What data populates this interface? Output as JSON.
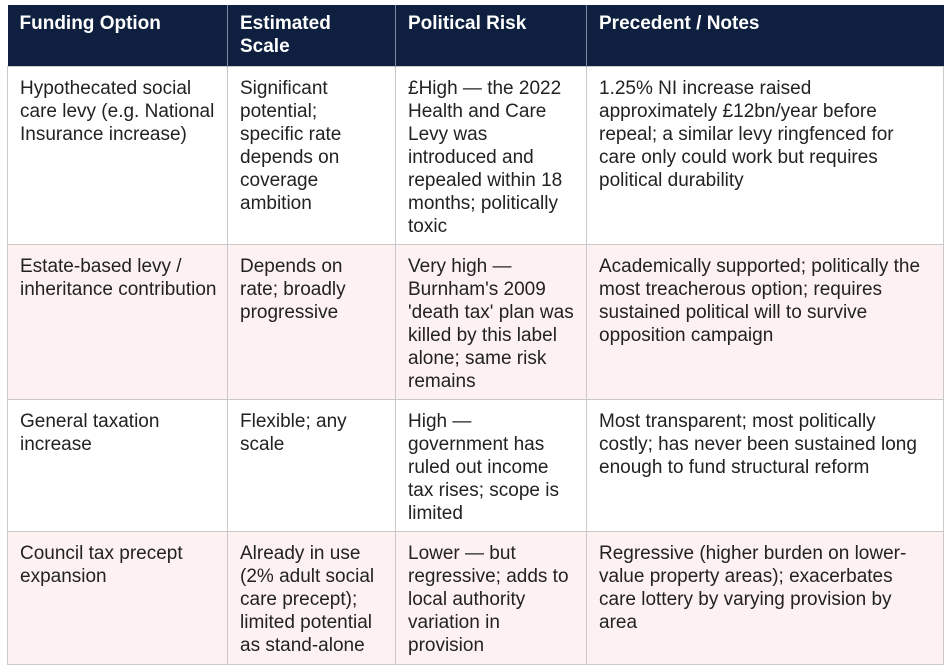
{
  "table": {
    "headers": [
      "Funding Option",
      "Estimated Scale",
      "Political Risk",
      "Precedent / Notes"
    ],
    "rows": [
      {
        "option": "Hypothecated social care levy (e.g. National Insurance increase)",
        "scale": "Significant potential; specific rate depends on coverage ambition",
        "risk": "£High — the 2022 Health and Care Levy was introduced and repealed within 18 months; politically toxic",
        "notes": "1.25% NI increase raised approximately £12bn/year before repeal; a similar levy ringfenced for care only could work but requires political durability"
      },
      {
        "option": "Estate-based levy / inheritance contribution",
        "scale": "Depends on rate; broadly progressive",
        "risk": "Very high — Burnham's 2009 'death tax' plan was killed by this label alone; same risk remains",
        "notes": "Academically supported; politically the most treacherous option; requires sustained political will to survive opposition campaign"
      },
      {
        "option": "General taxation increase",
        "scale": "Flexible; any scale",
        "risk": "High — government has ruled out income tax rises; scope is limited",
        "notes": "Most transparent; most politically costly; has never been sustained long enough to fund structural reform"
      },
      {
        "option": "Council tax precept expansion",
        "scale": "Already in use (2% adult social care precept); limited potential as stand-alone",
        "risk": "Lower — but regressive; adds to local authority variation in provision",
        "notes": "Regressive (higher burden on lower-value property areas); exacerbates care lottery by varying provision by area"
      }
    ]
  }
}
